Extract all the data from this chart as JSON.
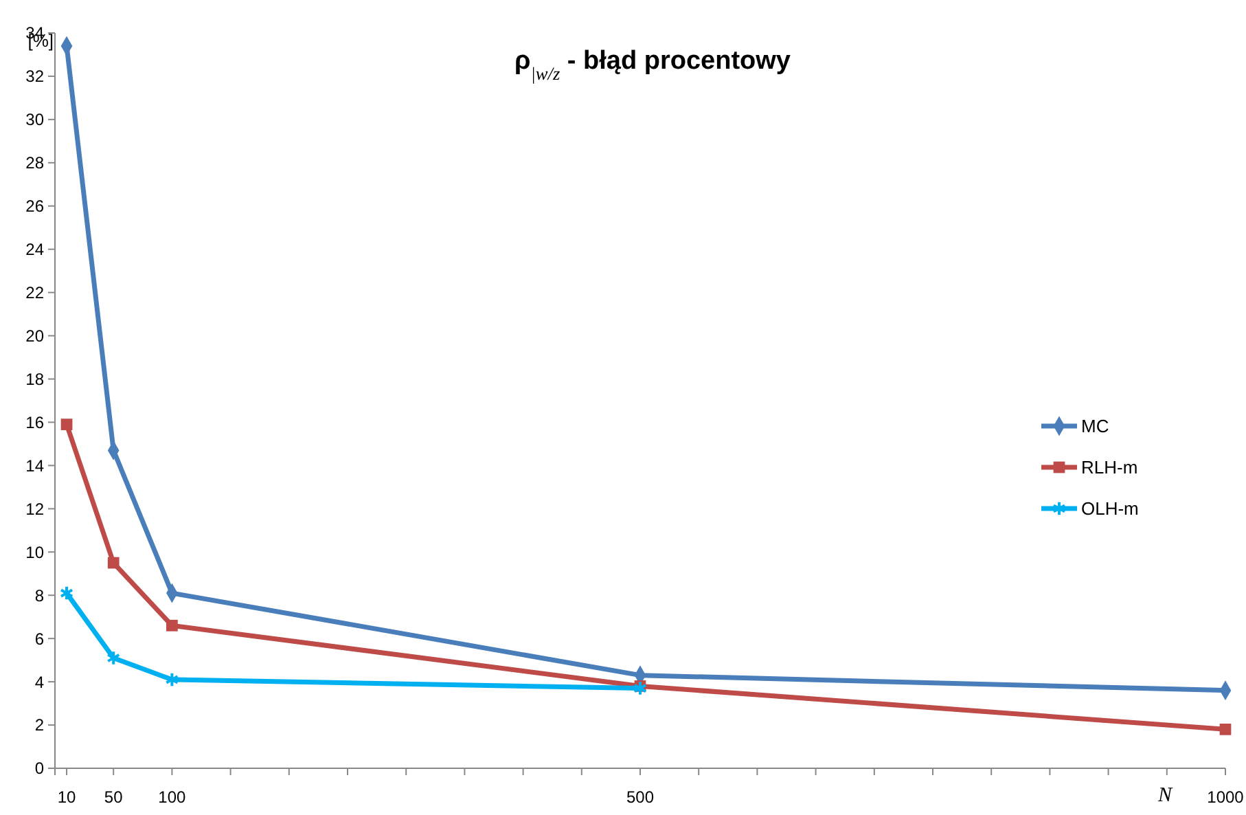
{
  "chart_data": {
    "type": "line",
    "title": "ρ$_{|w/z}$ - błąd procentowy",
    "xlabel": "N",
    "ylabel": "[%]",
    "x": [
      10,
      50,
      100,
      500,
      1000
    ],
    "series": [
      {
        "name": "MC",
        "color": "#4a7ebb",
        "values": [
          33.4,
          14.7,
          8.1,
          4.3,
          3.6
        ],
        "marker": "diamond"
      },
      {
        "name": "RLH-m",
        "color": "#be4b48",
        "values": [
          15.9,
          9.5,
          6.6,
          3.8,
          1.8
        ],
        "marker": "square"
      },
      {
        "name": "OLH-m",
        "color": "#00b0f0",
        "values": [
          8.1,
          5.1,
          4.1,
          3.7,
          null
        ],
        "marker": "cross"
      }
    ],
    "xlim": [
      0,
      1000
    ],
    "xticks": [
      {
        "value": 0,
        "label": null
      },
      10,
      50,
      100,
      {
        "value": 150,
        "label": null
      },
      {
        "value": 200,
        "label": null
      },
      {
        "value": 250,
        "label": null
      },
      {
        "value": 300,
        "label": null
      },
      {
        "value": 350,
        "label": null
      },
      {
        "value": 400,
        "label": null
      },
      {
        "value": 450,
        "label": null
      },
      500,
      {
        "value": 550,
        "label": null
      },
      {
        "value": 600,
        "label": null
      },
      {
        "value": 650,
        "label": null
      },
      {
        "value": 700,
        "label": null
      },
      {
        "value": 750,
        "label": null
      },
      {
        "value": 800,
        "label": null
      },
      {
        "value": 850,
        "label": null
      },
      {
        "value": 900,
        "label": null
      },
      {
        "value": 950,
        "label": null
      },
      1000
    ],
    "ylim": [
      0,
      34
    ],
    "yticks": [
      0,
      2,
      4,
      6,
      8,
      10,
      12,
      14,
      16,
      18,
      20,
      22,
      24,
      26,
      28,
      30,
      32,
      34
    ],
    "legend": "right",
    "grid": false
  }
}
